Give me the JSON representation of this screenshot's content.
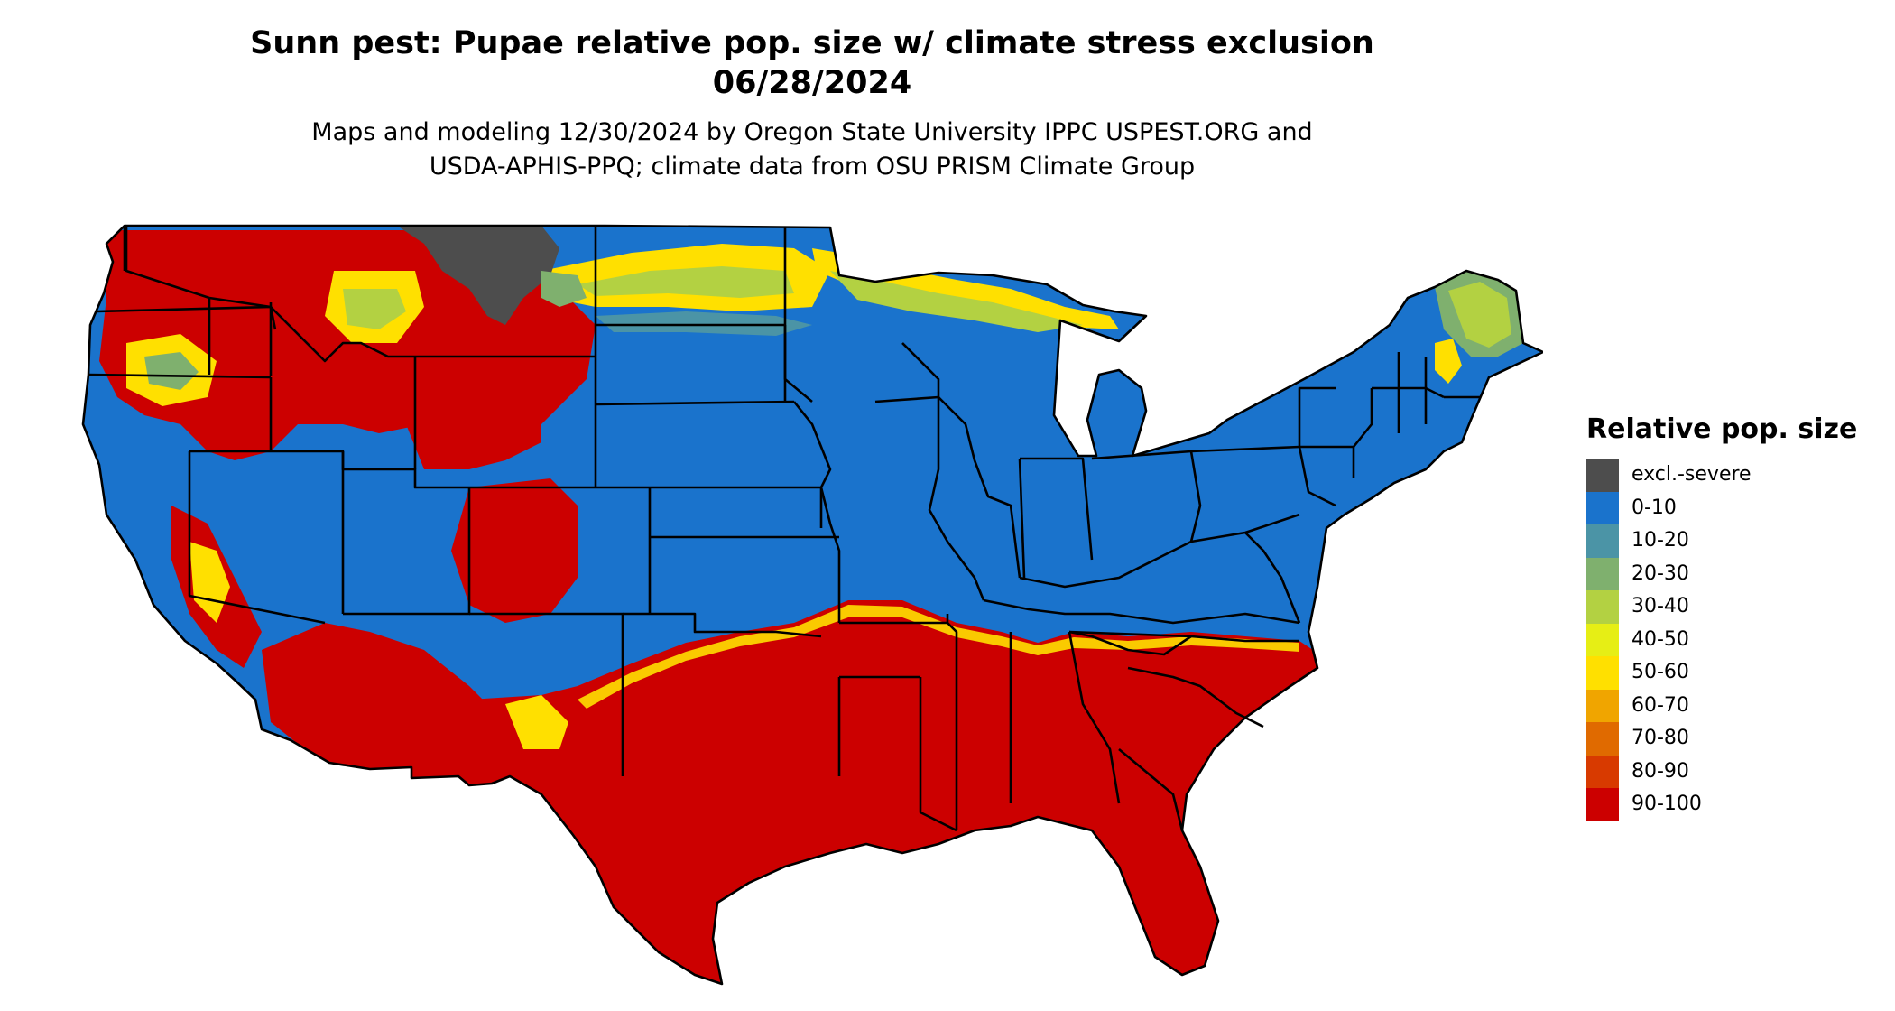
{
  "header": {
    "title_line1": "Sunn pest: Pupae relative pop. size w/ climate stress exclusion",
    "title_line2": "06/28/2024",
    "subtitle_line1": "Maps and modeling 12/30/2024 by Oregon State University IPPC USPEST.ORG and",
    "subtitle_line2": "USDA-APHIS-PPQ; climate data from OSU PRISM Climate Group"
  },
  "legend": {
    "title": "Relative pop. size",
    "items": [
      {
        "label": "excl.-severe",
        "color": "#4d4d4d"
      },
      {
        "label": "0-10",
        "color": "#1a73cc"
      },
      {
        "label": "10-20",
        "color": "#4b94a6"
      },
      {
        "label": "20-30",
        "color": "#7fb06e"
      },
      {
        "label": "30-40",
        "color": "#b3d142"
      },
      {
        "label": "40-50",
        "color": "#e6ee15"
      },
      {
        "label": "50-60",
        "color": "#ffe000"
      },
      {
        "label": "60-70",
        "color": "#f0a500"
      },
      {
        "label": "70-80",
        "color": "#e06a00"
      },
      {
        "label": "80-90",
        "color": "#d83a00"
      },
      {
        "label": "90-100",
        "color": "#cc0000"
      }
    ]
  },
  "map": {
    "region": "contiguous United States",
    "colors": {
      "excl": "#4d4d4d",
      "c0_10": "#1a73cc",
      "c10_20": "#4b94a6",
      "c20_30": "#7fb06e",
      "c30_40": "#b3d142",
      "c40_50": "#e6ee15",
      "c50_60": "#ffe000",
      "c90_100": "#cc0000"
    }
  }
}
